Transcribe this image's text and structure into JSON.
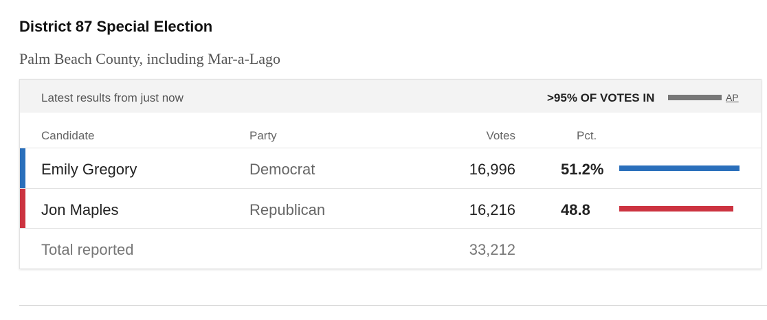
{
  "header": {
    "title": "District 87 Special Election",
    "subtitle": "Palm Beach County, including Mar-a-Lago"
  },
  "status": {
    "text": "Latest results from just now",
    "reporting": ">95% OF VOTES IN",
    "source": "AP"
  },
  "table": {
    "columns": [
      "Candidate",
      "Party",
      "Votes",
      "Pct."
    ],
    "rows": [
      {
        "candidate": "Emily Gregory",
        "party": "Democrat",
        "votes": "16,996",
        "pct": 51.2,
        "pct_label": "51.2%",
        "color": "#2a6fbb"
      },
      {
        "candidate": "Jon Maples",
        "party": "Republican",
        "votes": "16,216",
        "pct": 48.8,
        "color": "#cc3340"
      }
    ],
    "total": {
      "label": "Total reported",
      "votes": "33,212"
    }
  }
}
